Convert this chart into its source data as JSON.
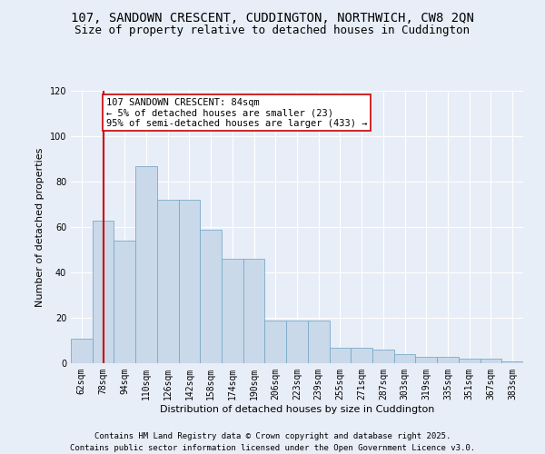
{
  "title": "107, SANDOWN CRESCENT, CUDDINGTON, NORTHWICH, CW8 2QN",
  "subtitle": "Size of property relative to detached houses in Cuddington",
  "xlabel": "Distribution of detached houses by size in Cuddington",
  "ylabel": "Number of detached properties",
  "categories": [
    "62sqm",
    "78sqm",
    "94sqm",
    "110sqm",
    "126sqm",
    "142sqm",
    "158sqm",
    "174sqm",
    "190sqm",
    "206sqm",
    "223sqm",
    "239sqm",
    "255sqm",
    "271sqm",
    "287sqm",
    "303sqm",
    "319sqm",
    "335sqm",
    "351sqm",
    "367sqm",
    "383sqm"
  ],
  "values": [
    11,
    63,
    54,
    87,
    72,
    72,
    59,
    46,
    46,
    19,
    19,
    19,
    7,
    7,
    6,
    4,
    3,
    3,
    2,
    2,
    1
  ],
  "bar_color": "#c9d9ea",
  "bar_edge_color": "#7aaac8",
  "background_color": "#e8eef8",
  "grid_color": "#ffffff",
  "vline_color": "#cc0000",
  "annotation_text": "107 SANDOWN CRESCENT: 84sqm\n← 5% of detached houses are smaller (23)\n95% of semi-detached houses are larger (433) →",
  "annotation_box_color": "white",
  "annotation_box_edge_color": "#cc0000",
  "ylim": [
    0,
    120
  ],
  "yticks": [
    0,
    20,
    40,
    60,
    80,
    100,
    120
  ],
  "footer1": "Contains HM Land Registry data © Crown copyright and database right 2025.",
  "footer2": "Contains public sector information licensed under the Open Government Licence v3.0.",
  "title_fontsize": 10,
  "subtitle_fontsize": 9,
  "axis_fontsize": 8,
  "tick_fontsize": 7,
  "footer_fontsize": 6.5,
  "annotation_fontsize": 7.5
}
